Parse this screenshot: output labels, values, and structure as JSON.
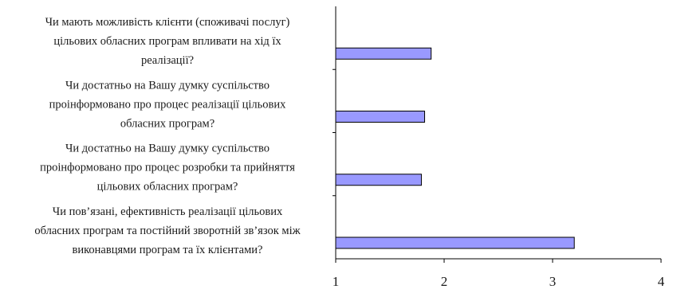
{
  "chart_data": {
    "type": "bar",
    "orientation": "horizontal",
    "categories": [
      [
        "Чи мають можливість клієнти (споживачі послуг)",
        "цільових обласних програм впливати на хід їх",
        "реалізації?"
      ],
      [
        "Чи достатньо на Вашу думку суспільство",
        "проінформовано про процес реалізації цільових",
        "обласних програм?"
      ],
      [
        "Чи достатньо на Вашу думку суспільство",
        "проінформовано про процес розробки та прийняття",
        "цільових обласних програм?"
      ],
      [
        "Чи пов’язані, ефективність реалізації цільових",
        "обласних програм та постійний зворотній зв’язок між",
        "виконавцями програм та їх клієнтами?"
      ]
    ],
    "values": [
      1.88,
      1.82,
      1.79,
      3.2
    ],
    "xlim": [
      1,
      4
    ],
    "xticks": [
      "1",
      "2",
      "3",
      "4"
    ],
    "title": "",
    "xlabel": "",
    "ylabel": "",
    "grid": false,
    "colors": {
      "bar_fill": "#9999ff",
      "bar_stroke": "#000000",
      "axis": "#000000"
    }
  }
}
